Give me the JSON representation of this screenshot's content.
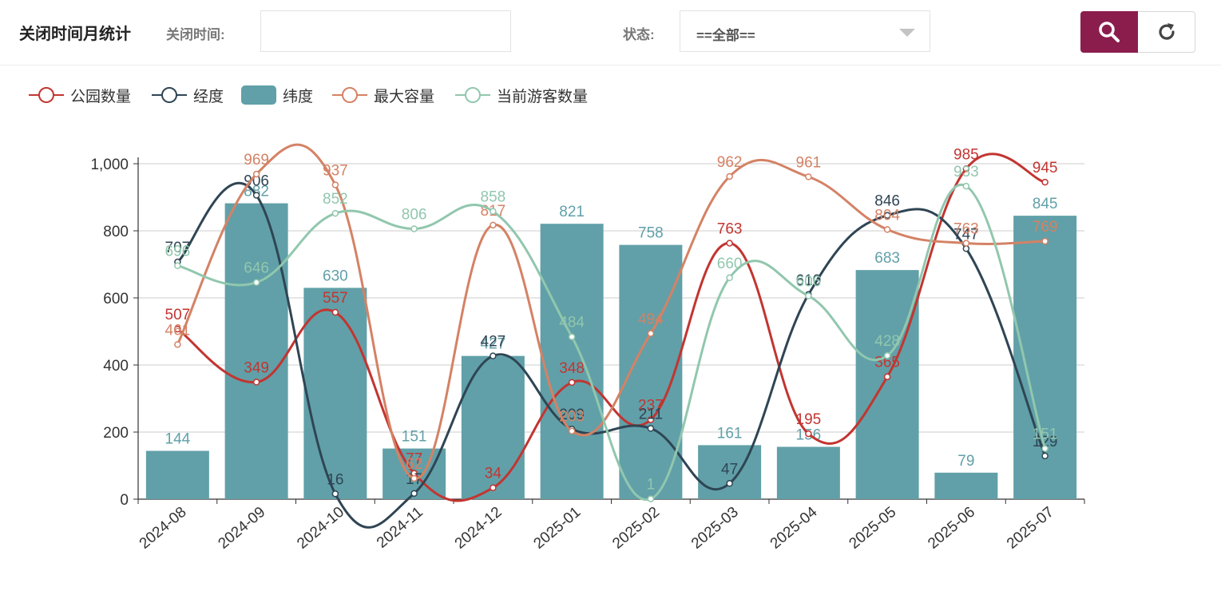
{
  "header": {
    "title": "关闭时间月统计",
    "close_time_label": "关闭时间:",
    "close_time_value": "",
    "status_label": "状态:",
    "status_value": "==全部=="
  },
  "buttons": {
    "search_icon": "search-icon",
    "reset_icon": "refresh-icon"
  },
  "chart_data": {
    "type": "bar",
    "categories": [
      "2024-08",
      "2024-09",
      "2024-10",
      "2024-11",
      "2024-12",
      "2025-01",
      "2025-02",
      "2025-03",
      "2025-04",
      "2025-05",
      "2025-06",
      "2025-07"
    ],
    "ylim": [
      0,
      1000
    ],
    "yticks": [
      0,
      200,
      400,
      600,
      800,
      1000
    ],
    "ytick_labels": [
      "0",
      "200",
      "400",
      "600",
      "800",
      "1,000"
    ],
    "grid": true,
    "legend_position": "top-left",
    "series": [
      {
        "name": "公园数量",
        "type": "line",
        "color": "#c23531",
        "values": [
          507,
          349,
          557,
          77,
          34,
          348,
          237,
          763,
          195,
          365,
          985,
          945
        ]
      },
      {
        "name": "经度",
        "type": "line",
        "color": "#2f4554",
        "values": [
          707,
          906,
          16,
          17,
          427,
          209,
          211,
          47,
          610,
          846,
          747,
          129
        ]
      },
      {
        "name": "纬度",
        "type": "bar",
        "color": "#61a0a8",
        "values": [
          144,
          882,
          630,
          151,
          427,
          821,
          758,
          161,
          156,
          683,
          79,
          845
        ]
      },
      {
        "name": "最大容量",
        "type": "line",
        "color": "#d48265",
        "values": [
          461,
          969,
          937,
          62,
          817,
          203,
          494,
          962,
          961,
          804,
          763,
          769
        ]
      },
      {
        "name": "当前游客数量",
        "type": "line",
        "color": "#91c7ae",
        "values": [
          696,
          646,
          852,
          806,
          858,
          484,
          1,
          660,
          606,
          428,
          933,
          151
        ]
      }
    ]
  }
}
